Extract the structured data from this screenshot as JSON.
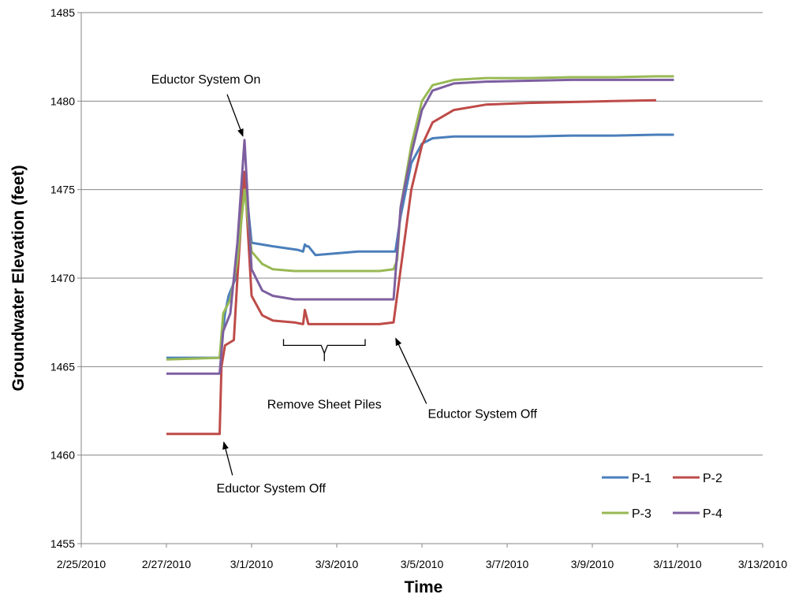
{
  "chart_data": {
    "type": "line",
    "xlabel": "Time",
    "ylabel": "Groundwater Elevation (feet)",
    "ylim": [
      1455,
      1485
    ],
    "yticks": [
      "1455",
      "1460",
      "1465",
      "1470",
      "1475",
      "1480",
      "1485"
    ],
    "xlim": [
      "2010-02-25",
      "2010-03-13"
    ],
    "xticks": [
      "2/25/2010",
      "2/27/2010",
      "3/1/2010",
      "3/3/2010",
      "3/5/2010",
      "3/7/2010",
      "3/9/2010",
      "3/11/2010",
      "3/13/2010"
    ],
    "grid": "horizontal",
    "legend_position": "bottom-right",
    "series": [
      {
        "name": "P-1",
        "color": "#4a7ebb",
        "x": [
          "2010-02-27 00:00",
          "2010-02-28 06:00",
          "2010-02-28 09:00",
          "2010-02-28 11:00",
          "2010-02-28 15:00",
          "2010-02-28 20:00",
          "2010-03-01 00:00",
          "2010-03-01 12:00",
          "2010-03-02 02:00",
          "2010-03-02 05:00",
          "2010-03-02 06:00",
          "2010-03-02 07:00",
          "2010-03-02 08:00",
          "2010-03-02 12:00",
          "2010-03-03 00:00",
          "2010-03-03 12:00",
          "2010-03-04 00:00",
          "2010-03-04 09:00",
          "2010-03-04 12:00",
          "2010-03-04 18:00",
          "2010-03-05 00:00",
          "2010-03-05 06:00",
          "2010-03-05 18:00",
          "2010-03-06 12:00",
          "2010-03-07 12:00",
          "2010-03-08 12:00",
          "2010-03-09 12:00",
          "2010-03-10 12:00",
          "2010-03-10 22:00"
        ],
        "y": [
          1465.5,
          1465.5,
          1468.0,
          1469.0,
          1470.0,
          1476.0,
          1472.0,
          1471.8,
          1471.6,
          1471.5,
          1471.9,
          1471.8,
          1471.8,
          1471.3,
          1471.4,
          1471.5,
          1471.5,
          1471.5,
          1473.5,
          1476.5,
          1477.6,
          1477.9,
          1478.0,
          1478.0,
          1478.0,
          1478.05,
          1478.05,
          1478.1,
          1478.1
        ]
      },
      {
        "name": "P-2",
        "color": "#be4b48",
        "x": [
          "2010-02-27 00:00",
          "2010-02-28 06:00",
          "2010-02-28 07:00",
          "2010-02-28 09:00",
          "2010-02-28 14:00",
          "2010-02-28 16:00",
          "2010-02-28 20:00",
          "2010-03-01 00:00",
          "2010-03-01 06:00",
          "2010-03-01 12:00",
          "2010-03-02 00:00",
          "2010-03-02 05:00",
          "2010-03-02 06:00",
          "2010-03-02 08:00",
          "2010-03-03 00:00",
          "2010-03-03 12:00",
          "2010-03-04 00:00",
          "2010-03-04 08:00",
          "2010-03-04 12:00",
          "2010-03-04 18:00",
          "2010-03-05 00:00",
          "2010-03-05 06:00",
          "2010-03-05 18:00",
          "2010-03-06 12:00",
          "2010-03-07 12:00",
          "2010-03-08 12:00",
          "2010-03-09 12:00",
          "2010-03-10 12:00"
        ],
        "y": [
          1461.2,
          1461.2,
          1465.0,
          1466.2,
          1466.5,
          1470.0,
          1476.0,
          1469.0,
          1467.9,
          1467.6,
          1467.5,
          1467.4,
          1468.2,
          1467.4,
          1467.4,
          1467.4,
          1467.4,
          1467.5,
          1470.5,
          1475.0,
          1477.5,
          1478.8,
          1479.5,
          1479.8,
          1479.9,
          1479.95,
          1480.0,
          1480.05
        ]
      },
      {
        "name": "P-3",
        "color": "#98b954",
        "x": [
          "2010-02-27 00:00",
          "2010-02-28 06:00",
          "2010-02-28 08:00",
          "2010-02-28 12:00",
          "2010-02-28 16:00",
          "2010-02-28 20:00",
          "2010-03-01 00:00",
          "2010-03-01 06:00",
          "2010-03-01 12:00",
          "2010-03-02 00:00",
          "2010-03-03 00:00",
          "2010-03-04 00:00",
          "2010-03-04 08:00",
          "2010-03-04 10:00",
          "2010-03-04 12:00",
          "2010-03-04 18:00",
          "2010-03-05 00:00",
          "2010-03-05 06:00",
          "2010-03-05 18:00",
          "2010-03-06 12:00",
          "2010-03-07 12:00",
          "2010-03-08 12:00",
          "2010-03-09 12:00",
          "2010-03-10 12:00",
          "2010-03-10 22:00"
        ],
        "y": [
          1465.4,
          1465.5,
          1468.0,
          1468.8,
          1471.0,
          1475.0,
          1471.5,
          1470.8,
          1470.5,
          1470.4,
          1470.4,
          1470.4,
          1470.5,
          1471.0,
          1474.0,
          1477.5,
          1480.0,
          1480.9,
          1481.2,
          1481.3,
          1481.3,
          1481.35,
          1481.35,
          1481.4,
          1481.4
        ]
      },
      {
        "name": "P-4",
        "color": "#7d5fa0",
        "x": [
          "2010-02-27 00:00",
          "2010-02-28 06:00",
          "2010-02-28 08:00",
          "2010-02-28 12:00",
          "2010-02-28 16:00",
          "2010-02-28 20:00",
          "2010-03-01 00:00",
          "2010-03-01 06:00",
          "2010-03-01 12:00",
          "2010-03-02 00:00",
          "2010-03-03 00:00",
          "2010-03-03 22:00",
          "2010-03-04 00:00",
          "2010-03-04 08:00",
          "2010-03-04 12:00",
          "2010-03-04 18:00",
          "2010-03-05 00:00",
          "2010-03-05 06:00",
          "2010-03-05 18:00",
          "2010-03-06 12:00",
          "2010-03-07 12:00",
          "2010-03-08 12:00",
          "2010-03-09 12:00",
          "2010-03-10 12:00",
          "2010-03-10 22:00"
        ],
        "y": [
          1464.6,
          1464.6,
          1467.0,
          1468.0,
          1472.0,
          1477.8,
          1470.5,
          1469.3,
          1469.0,
          1468.8,
          1468.8,
          1468.8,
          1468.8,
          1468.8,
          1474.0,
          1477.0,
          1479.5,
          1480.6,
          1481.0,
          1481.1,
          1481.15,
          1481.2,
          1481.2,
          1481.2,
          1481.2
        ]
      }
    ],
    "annotations": [
      {
        "text": "Eductor System On",
        "at_x": "2010-02-28 20:00",
        "at_y": 1477.8
      },
      {
        "text": "Eductor System Off",
        "at_x": "2010-02-28 07:00",
        "at_y": 1461.0
      },
      {
        "text": "Remove Sheet Piles",
        "from_x": "2010-03-01 18:00",
        "to_x": "2010-03-03 16:00",
        "at_y": 1466.2
      },
      {
        "text": "Eductor System Off",
        "at_x": "2010-03-04 07:00",
        "at_y": 1467.0
      }
    ]
  }
}
